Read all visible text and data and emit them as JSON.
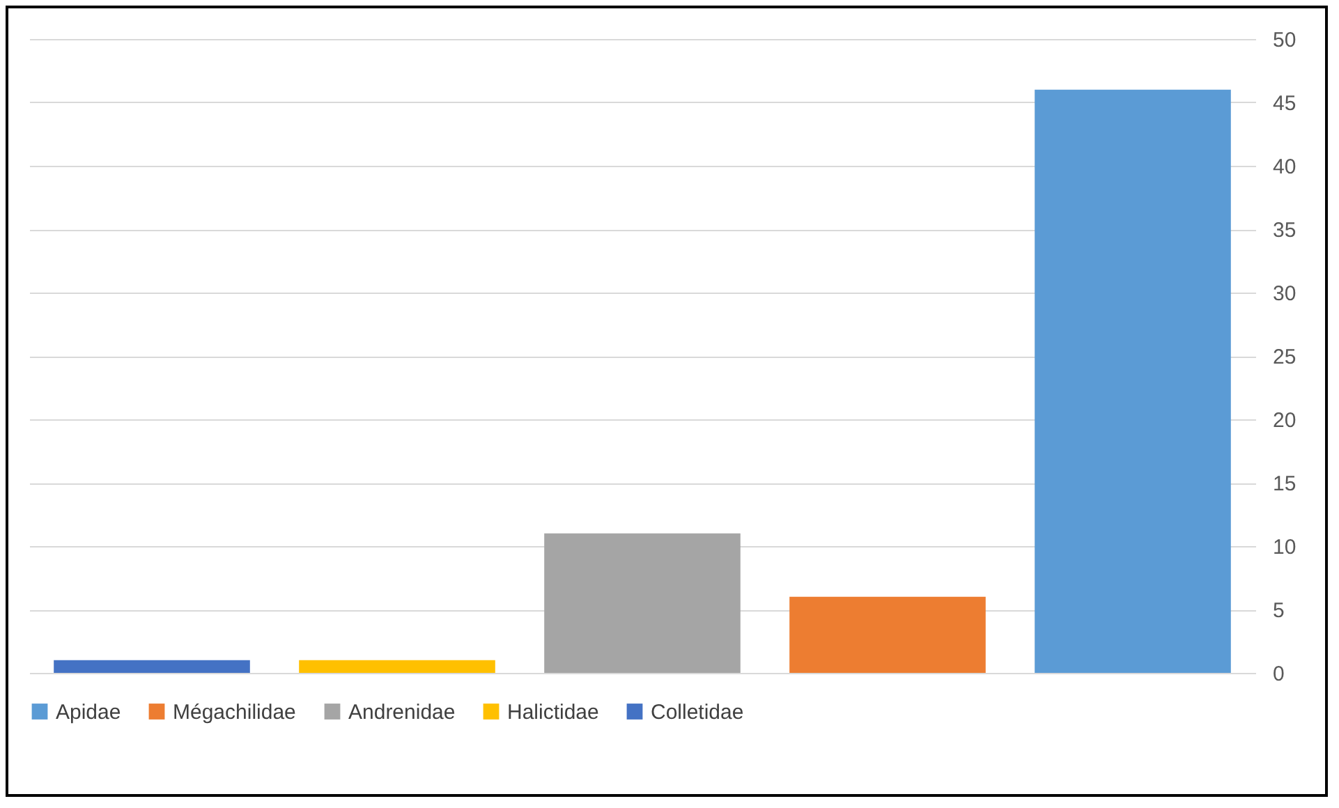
{
  "chart_data": {
    "type": "bar",
    "categories": [
      null,
      null,
      null,
      null,
      null
    ],
    "series": [
      {
        "name": "Apidae",
        "color": "#5b9bd5",
        "values": [
          null,
          null,
          null,
          null,
          46
        ]
      },
      {
        "name": "Mégachilidae",
        "color": "#ed7d31",
        "values": [
          null,
          null,
          null,
          6,
          null
        ]
      },
      {
        "name": "Andrenidae",
        "color": "#a5a5a5",
        "values": [
          null,
          null,
          11,
          null,
          null
        ]
      },
      {
        "name": "Halictidae",
        "color": "#ffc000",
        "values": [
          null,
          1,
          null,
          null,
          null
        ]
      },
      {
        "name": "Colletidae",
        "color": "#4472c4",
        "values": [
          1,
          null,
          null,
          null,
          null
        ]
      }
    ],
    "ylim": [
      0,
      50
    ],
    "yticks": [
      0,
      5,
      10,
      15,
      20,
      25,
      30,
      35,
      40,
      45,
      50
    ],
    "grid": "y",
    "legend": "bottom",
    "tick_labels": "y"
  }
}
